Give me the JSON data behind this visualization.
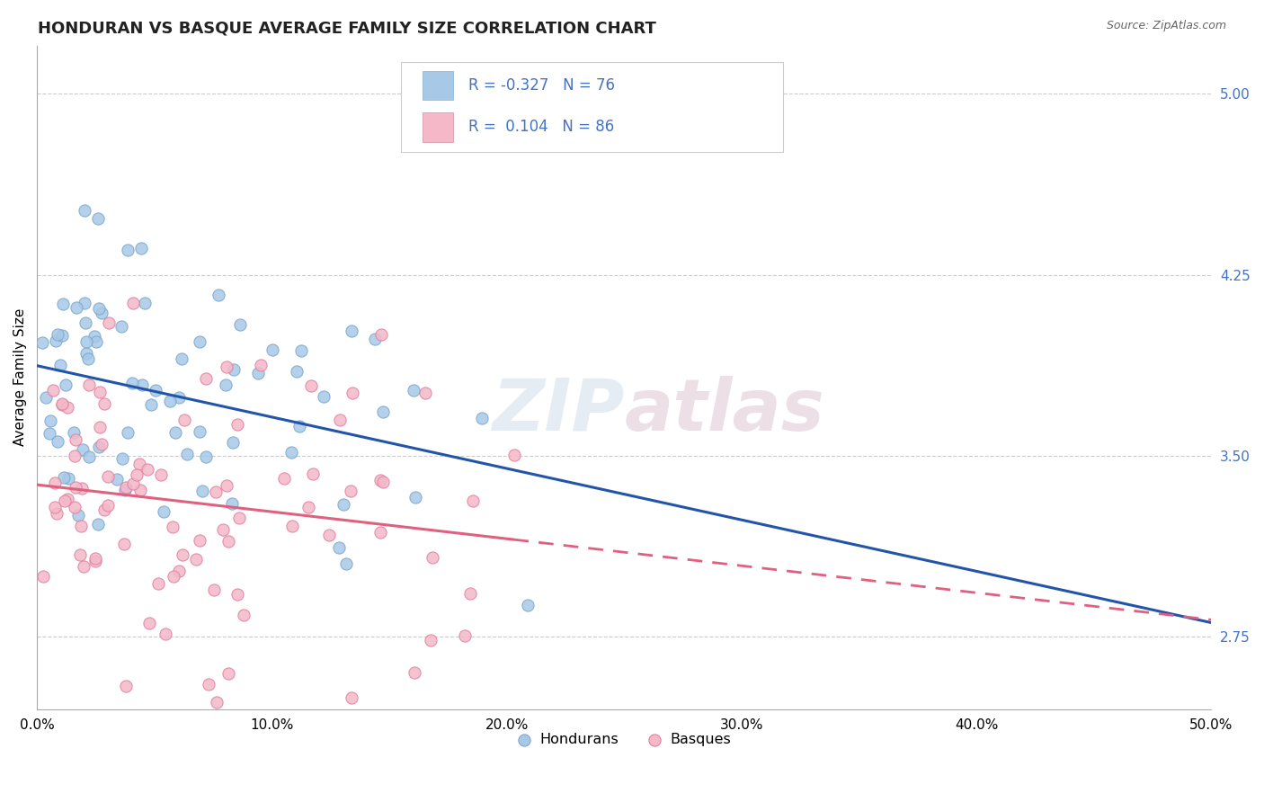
{
  "title": "HONDURAN VS BASQUE AVERAGE FAMILY SIZE CORRELATION CHART",
  "source_text": "Source: ZipAtlas.com",
  "ylabel": "Average Family Size",
  "xlim": [
    0.0,
    0.5
  ],
  "ylim": [
    2.45,
    5.2
  ],
  "yticks": [
    2.75,
    3.5,
    4.25,
    5.0
  ],
  "xticks": [
    0.0,
    0.1,
    0.2,
    0.3,
    0.4,
    0.5
  ],
  "xtick_labels": [
    "0.0%",
    "10.0%",
    "20.0%",
    "30.0%",
    "40.0%",
    "50.0%"
  ],
  "honduran_scatter_color": "#a8c8e8",
  "honduran_edge_color": "#7aa8cc",
  "basque_scatter_color": "#f4b8c8",
  "basque_edge_color": "#e080a0",
  "honduran_line_color": "#2255aa",
  "basque_line_color": "#e06080",
  "honduran_R": -0.327,
  "honduran_N": 76,
  "basque_R": 0.104,
  "basque_N": 86,
  "watermark": "ZIPatlas",
  "legend_label_hondurans": "Hondurans",
  "legend_label_basques": "Basques",
  "title_fontsize": 13,
  "axis_label_fontsize": 11,
  "tick_fontsize": 11,
  "tick_color": "#4472c4",
  "grid_color": "#cccccc",
  "background_color": "#ffffff",
  "legend_patch_blue": "#a8c8e8",
  "legend_patch_pink": "#f4b8c8"
}
